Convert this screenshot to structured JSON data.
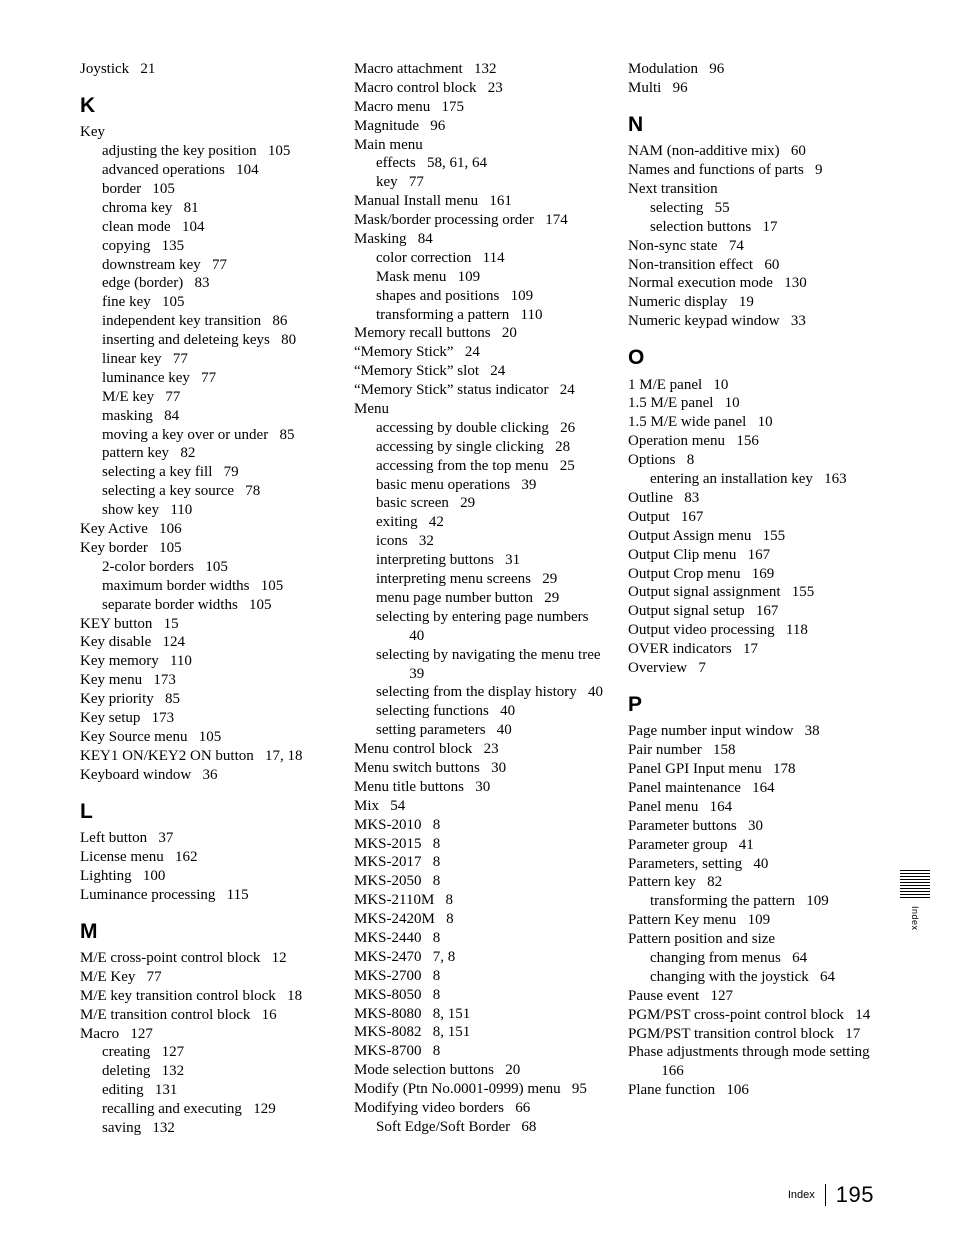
{
  "page_number": "195",
  "footer_label": "Index",
  "side_label": "Index",
  "sections": [
    {
      "type": "entry",
      "term": "Joystick",
      "pages": "21"
    },
    {
      "type": "letter",
      "text": "K"
    },
    {
      "type": "entry",
      "term": "Key",
      "pages": ""
    },
    {
      "type": "sub1",
      "term": "adjusting the key position",
      "pages": "105"
    },
    {
      "type": "sub1",
      "term": "advanced operations",
      "pages": "104"
    },
    {
      "type": "sub1",
      "term": "border",
      "pages": "105"
    },
    {
      "type": "sub1",
      "term": "chroma key",
      "pages": "81"
    },
    {
      "type": "sub1",
      "term": "clean mode",
      "pages": "104"
    },
    {
      "type": "sub1",
      "term": "copying",
      "pages": "135"
    },
    {
      "type": "sub1",
      "term": "downstream key",
      "pages": "77"
    },
    {
      "type": "sub1",
      "term": "edge (border)",
      "pages": "83"
    },
    {
      "type": "sub1",
      "term": "fine key",
      "pages": "105"
    },
    {
      "type": "sub1",
      "term": "independent key transition",
      "pages": "86"
    },
    {
      "type": "sub1",
      "term": "inserting and deleteing keys",
      "pages": "80"
    },
    {
      "type": "sub1",
      "term": "linear key",
      "pages": "77"
    },
    {
      "type": "sub1",
      "term": "luminance key",
      "pages": "77"
    },
    {
      "type": "sub1",
      "term": "M/E key",
      "pages": "77"
    },
    {
      "type": "sub1",
      "term": "masking",
      "pages": "84"
    },
    {
      "type": "sub1",
      "term": "moving a key over or under",
      "pages": "85"
    },
    {
      "type": "sub1",
      "term": "pattern key",
      "pages": "82"
    },
    {
      "type": "sub1",
      "term": "selecting a key fill",
      "pages": "79"
    },
    {
      "type": "sub1",
      "term": "selecting a key source",
      "pages": "78"
    },
    {
      "type": "sub1",
      "term": "show key",
      "pages": "110"
    },
    {
      "type": "entry",
      "term": "Key Active",
      "pages": "106"
    },
    {
      "type": "entry",
      "term": "Key border",
      "pages": "105"
    },
    {
      "type": "sub1",
      "term": "2-color borders",
      "pages": "105"
    },
    {
      "type": "sub1",
      "term": "maximum border widths",
      "pages": "105"
    },
    {
      "type": "sub1",
      "term": "separate border widths",
      "pages": "105"
    },
    {
      "type": "entry",
      "term": "KEY button",
      "pages": "15"
    },
    {
      "type": "entry",
      "term": "Key disable",
      "pages": "124"
    },
    {
      "type": "entry",
      "term": "Key memory",
      "pages": "110"
    },
    {
      "type": "entry",
      "term": "Key menu",
      "pages": "173"
    },
    {
      "type": "entry",
      "term": "Key priority",
      "pages": "85"
    },
    {
      "type": "entry",
      "term": "Key setup",
      "pages": "173"
    },
    {
      "type": "entry",
      "term": "Key Source menu",
      "pages": "105"
    },
    {
      "type": "entry",
      "term": "KEY1 ON/KEY2 ON button",
      "pages": "17, 18"
    },
    {
      "type": "entry",
      "term": "Keyboard window",
      "pages": "36"
    },
    {
      "type": "letter",
      "text": "L"
    },
    {
      "type": "entry",
      "term": "Left button",
      "pages": "37"
    },
    {
      "type": "entry",
      "term": "License menu",
      "pages": "162"
    },
    {
      "type": "entry",
      "term": "Lighting",
      "pages": "100"
    },
    {
      "type": "entry",
      "term": "Luminance processing",
      "pages": "115"
    },
    {
      "type": "letter",
      "text": "M"
    },
    {
      "type": "entry",
      "term": "M/E cross-point control block",
      "pages": "12"
    },
    {
      "type": "entry",
      "term": "M/E Key",
      "pages": "77"
    },
    {
      "type": "entry",
      "term": "M/E key transition control block",
      "pages": "18"
    },
    {
      "type": "entry",
      "term": "M/E transition control block",
      "pages": "16"
    },
    {
      "type": "entry",
      "term": "Macro",
      "pages": "127"
    },
    {
      "type": "sub1",
      "term": "creating",
      "pages": "127"
    },
    {
      "type": "sub1",
      "term": "deleting",
      "pages": "132"
    },
    {
      "type": "sub1",
      "term": "editing",
      "pages": "131"
    },
    {
      "type": "sub1",
      "term": "recalling and executing",
      "pages": "129"
    },
    {
      "type": "sub1",
      "term": "saving",
      "pages": "132"
    },
    {
      "type": "entry",
      "term": "Macro attachment",
      "pages": "132"
    },
    {
      "type": "entry",
      "term": "Macro control block",
      "pages": "23"
    },
    {
      "type": "entry",
      "term": "Macro menu",
      "pages": "175"
    },
    {
      "type": "entry",
      "term": "Magnitude",
      "pages": "96"
    },
    {
      "type": "entry",
      "term": "Main menu",
      "pages": ""
    },
    {
      "type": "sub1",
      "term": "effects",
      "pages": "58, 61, 64"
    },
    {
      "type": "sub1",
      "term": "key",
      "pages": "77"
    },
    {
      "type": "entry",
      "term": "Manual Install menu",
      "pages": "161"
    },
    {
      "type": "entry",
      "term": "Mask/border processing order",
      "pages": "174"
    },
    {
      "type": "entry",
      "term": "Masking",
      "pages": "84"
    },
    {
      "type": "sub1",
      "term": "color correction",
      "pages": "114"
    },
    {
      "type": "sub1",
      "term": "Mask menu",
      "pages": "109"
    },
    {
      "type": "sub1",
      "term": "shapes and positions",
      "pages": "109"
    },
    {
      "type": "sub1",
      "term": "transforming a pattern",
      "pages": "110"
    },
    {
      "type": "entry",
      "term": "Memory recall buttons",
      "pages": "20"
    },
    {
      "type": "entry",
      "term": "“Memory Stick”",
      "pages": "24"
    },
    {
      "type": "entry",
      "term": "“Memory Stick” slot",
      "pages": "24"
    },
    {
      "type": "entry",
      "term": "“Memory Stick” status indicator",
      "pages": "24"
    },
    {
      "type": "entry",
      "term": "Menu",
      "pages": ""
    },
    {
      "type": "sub1",
      "term": "accessing by double clicking",
      "pages": "26"
    },
    {
      "type": "sub1",
      "term": "accessing by single clicking",
      "pages": "28"
    },
    {
      "type": "sub1",
      "term": "accessing from the top menu",
      "pages": "25"
    },
    {
      "type": "sub1",
      "term": "basic menu operations",
      "pages": "39"
    },
    {
      "type": "sub1",
      "term": "basic screen",
      "pages": "29"
    },
    {
      "type": "sub1",
      "term": "exiting",
      "pages": "42"
    },
    {
      "type": "sub1",
      "term": "icons",
      "pages": "32"
    },
    {
      "type": "sub1",
      "term": "interpreting buttons",
      "pages": "31"
    },
    {
      "type": "sub1",
      "term": "interpreting menu screens",
      "pages": "29"
    },
    {
      "type": "sub1",
      "term": "menu page number button",
      "pages": "29"
    },
    {
      "type": "sub1",
      "term": "selecting by entering page numbers",
      "pages": "40"
    },
    {
      "type": "sub1",
      "term": "selecting by navigating the menu tree",
      "pages": "39"
    },
    {
      "type": "sub1",
      "term": "selecting from the display history",
      "pages": "40"
    },
    {
      "type": "sub1",
      "term": "selecting functions",
      "pages": "40"
    },
    {
      "type": "sub1",
      "term": "setting parameters",
      "pages": "40"
    },
    {
      "type": "entry",
      "term": "Menu control block",
      "pages": "23"
    },
    {
      "type": "entry",
      "term": "Menu switch buttons",
      "pages": "30"
    },
    {
      "type": "entry",
      "term": "Menu title buttons",
      "pages": "30"
    },
    {
      "type": "entry",
      "term": "Mix",
      "pages": "54"
    },
    {
      "type": "entry",
      "term": "MKS-2010",
      "pages": "8"
    },
    {
      "type": "entry",
      "term": "MKS-2015",
      "pages": "8"
    },
    {
      "type": "entry",
      "term": "MKS-2017",
      "pages": "8"
    },
    {
      "type": "entry",
      "term": "MKS-2050",
      "pages": "8"
    },
    {
      "type": "entry",
      "term": "MKS-2110M",
      "pages": "8"
    },
    {
      "type": "entry",
      "term": "MKS-2420M",
      "pages": "8"
    },
    {
      "type": "entry",
      "term": "MKS-2440",
      "pages": "8"
    },
    {
      "type": "entry",
      "term": "MKS-2470",
      "pages": "7, 8"
    },
    {
      "type": "entry",
      "term": "MKS-2700",
      "pages": "8"
    },
    {
      "type": "entry",
      "term": "MKS-8050",
      "pages": "8"
    },
    {
      "type": "entry",
      "term": "MKS-8080",
      "pages": "8, 151"
    },
    {
      "type": "entry",
      "term": "MKS-8082",
      "pages": "8, 151"
    },
    {
      "type": "entry",
      "term": "MKS-8700",
      "pages": "8"
    },
    {
      "type": "entry",
      "term": "Mode selection buttons",
      "pages": "20"
    },
    {
      "type": "entry",
      "term": "Modify (Ptn No.0001-0999) menu",
      "pages": "95"
    },
    {
      "type": "entry",
      "term": "Modifying video borders",
      "pages": "66"
    },
    {
      "type": "sub1",
      "term": "Soft Edge/Soft Border",
      "pages": "68"
    },
    {
      "type": "entry",
      "term": "Modulation",
      "pages": "96"
    },
    {
      "type": "entry",
      "term": "Multi",
      "pages": "96"
    },
    {
      "type": "letter",
      "text": "N"
    },
    {
      "type": "entry",
      "term": "NAM (non-additive mix)",
      "pages": "60"
    },
    {
      "type": "entry",
      "term": "Names and functions of parts",
      "pages": "9"
    },
    {
      "type": "entry",
      "term": "Next transition",
      "pages": ""
    },
    {
      "type": "sub1",
      "term": "selecting",
      "pages": "55"
    },
    {
      "type": "sub1",
      "term": "selection buttons",
      "pages": "17"
    },
    {
      "type": "entry",
      "term": "Non-sync state",
      "pages": "74"
    },
    {
      "type": "entry",
      "term": "Non-transition effect",
      "pages": "60"
    },
    {
      "type": "entry",
      "term": "Normal execution mode",
      "pages": "130"
    },
    {
      "type": "entry",
      "term": "Numeric display",
      "pages": "19"
    },
    {
      "type": "entry",
      "term": "Numeric keypad window",
      "pages": "33"
    },
    {
      "type": "letter",
      "text": "O"
    },
    {
      "type": "entry",
      "term": "1 M/E panel",
      "pages": "10"
    },
    {
      "type": "entry",
      "term": "1.5 M/E panel",
      "pages": "10"
    },
    {
      "type": "entry",
      "term": "1.5 M/E wide panel",
      "pages": "10"
    },
    {
      "type": "entry",
      "term": "Operation menu",
      "pages": "156"
    },
    {
      "type": "entry",
      "term": "Options",
      "pages": "8"
    },
    {
      "type": "sub1",
      "term": "entering an installation key",
      "pages": "163"
    },
    {
      "type": "entry",
      "term": "Outline",
      "pages": "83"
    },
    {
      "type": "entry",
      "term": "Output",
      "pages": "167"
    },
    {
      "type": "entry",
      "term": "Output Assign menu",
      "pages": "155"
    },
    {
      "type": "entry",
      "term": "Output Clip menu",
      "pages": "167"
    },
    {
      "type": "entry",
      "term": "Output Crop menu",
      "pages": "169"
    },
    {
      "type": "entry",
      "term": "Output signal assignment",
      "pages": "155"
    },
    {
      "type": "entry",
      "term": "Output signal setup",
      "pages": "167"
    },
    {
      "type": "entry",
      "term": "Output video processing",
      "pages": "118"
    },
    {
      "type": "entry",
      "term": "OVER indicators",
      "pages": "17"
    },
    {
      "type": "entry",
      "term": "Overview",
      "pages": "7"
    },
    {
      "type": "letter",
      "text": "P"
    },
    {
      "type": "entry",
      "term": "Page number input window",
      "pages": "38"
    },
    {
      "type": "entry",
      "term": "Pair number",
      "pages": "158"
    },
    {
      "type": "entry",
      "term": "Panel GPI Input menu",
      "pages": "178"
    },
    {
      "type": "entry",
      "term": "Panel maintenance",
      "pages": "164"
    },
    {
      "type": "entry",
      "term": "Panel menu",
      "pages": "164"
    },
    {
      "type": "entry",
      "term": "Parameter buttons",
      "pages": "30"
    },
    {
      "type": "entry",
      "term": "Parameter group",
      "pages": "41"
    },
    {
      "type": "entry",
      "term": "Parameters, setting",
      "pages": "40"
    },
    {
      "type": "entry",
      "term": "Pattern key",
      "pages": "82"
    },
    {
      "type": "sub1",
      "term": "transforming the pattern",
      "pages": "109"
    },
    {
      "type": "entry",
      "term": "Pattern Key menu",
      "pages": "109"
    },
    {
      "type": "entry",
      "term": "Pattern position and size",
      "pages": ""
    },
    {
      "type": "sub1",
      "term": "changing from menus",
      "pages": "64"
    },
    {
      "type": "sub1",
      "term": "changing with the joystick",
      "pages": "64"
    },
    {
      "type": "entry",
      "term": "Pause event",
      "pages": "127"
    },
    {
      "type": "entry",
      "term": "PGM/PST cross-point control block",
      "pages": "14"
    },
    {
      "type": "entry",
      "term": "PGM/PST transition control block",
      "pages": "17"
    },
    {
      "type": "entry",
      "term": "Phase adjustments through mode setting",
      "pages": "166"
    },
    {
      "type": "entry",
      "term": "Plane function",
      "pages": "106"
    }
  ]
}
